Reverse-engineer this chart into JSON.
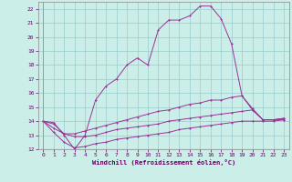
{
  "xlabel": "Windchill (Refroidissement éolien,°C)",
  "background_color": "#cceee8",
  "line_color": "#993399",
  "grid_color": "#99cccc",
  "xlim": [
    -0.5,
    23.5
  ],
  "ylim": [
    12,
    22.5
  ],
  "yticks": [
    12,
    13,
    14,
    15,
    16,
    17,
    18,
    19,
    20,
    21,
    22
  ],
  "xticks": [
    0,
    1,
    2,
    3,
    4,
    5,
    6,
    7,
    8,
    9,
    10,
    11,
    12,
    13,
    14,
    15,
    16,
    17,
    18,
    19,
    20,
    21,
    22,
    23
  ],
  "line1_x": [
    0,
    1,
    2,
    3,
    4,
    5,
    6,
    7,
    8,
    9,
    10,
    11,
    12,
    13,
    14,
    15,
    16,
    17,
    18,
    19,
    20,
    21,
    22,
    23
  ],
  "line1_y": [
    14.0,
    13.9,
    13.0,
    12.0,
    13.0,
    15.5,
    16.5,
    17.0,
    18.0,
    18.5,
    18.0,
    20.5,
    21.2,
    21.2,
    21.5,
    22.2,
    22.2,
    21.3,
    19.5,
    15.8,
    14.8,
    14.1,
    14.1,
    14.1
  ],
  "line2_x": [
    0,
    1,
    2,
    3,
    4,
    5,
    6,
    7,
    8,
    9,
    10,
    11,
    12,
    13,
    14,
    15,
    16,
    17,
    18,
    19,
    20,
    21,
    22,
    23
  ],
  "line2_y": [
    14.0,
    13.8,
    13.1,
    13.1,
    13.3,
    13.5,
    13.7,
    13.9,
    14.1,
    14.3,
    14.5,
    14.7,
    14.8,
    15.0,
    15.2,
    15.3,
    15.5,
    15.5,
    15.7,
    15.8,
    14.9,
    14.1,
    14.1,
    14.2
  ],
  "line3_x": [
    0,
    1,
    2,
    3,
    4,
    5,
    6,
    7,
    8,
    9,
    10,
    11,
    12,
    13,
    14,
    15,
    16,
    17,
    18,
    19,
    20,
    21,
    22,
    23
  ],
  "line3_y": [
    14.0,
    13.5,
    13.1,
    12.9,
    12.9,
    13.0,
    13.2,
    13.4,
    13.5,
    13.6,
    13.7,
    13.8,
    14.0,
    14.1,
    14.2,
    14.3,
    14.4,
    14.5,
    14.6,
    14.7,
    14.8,
    14.1,
    14.1,
    14.2
  ],
  "line4_x": [
    0,
    1,
    2,
    3,
    4,
    5,
    6,
    7,
    8,
    9,
    10,
    11,
    12,
    13,
    14,
    15,
    16,
    17,
    18,
    19,
    20,
    21,
    22,
    23
  ],
  "line4_y": [
    14.0,
    13.2,
    12.5,
    12.1,
    12.2,
    12.4,
    12.5,
    12.7,
    12.8,
    12.9,
    13.0,
    13.1,
    13.2,
    13.4,
    13.5,
    13.6,
    13.7,
    13.8,
    13.9,
    14.0,
    14.0,
    14.0,
    14.0,
    14.1
  ]
}
